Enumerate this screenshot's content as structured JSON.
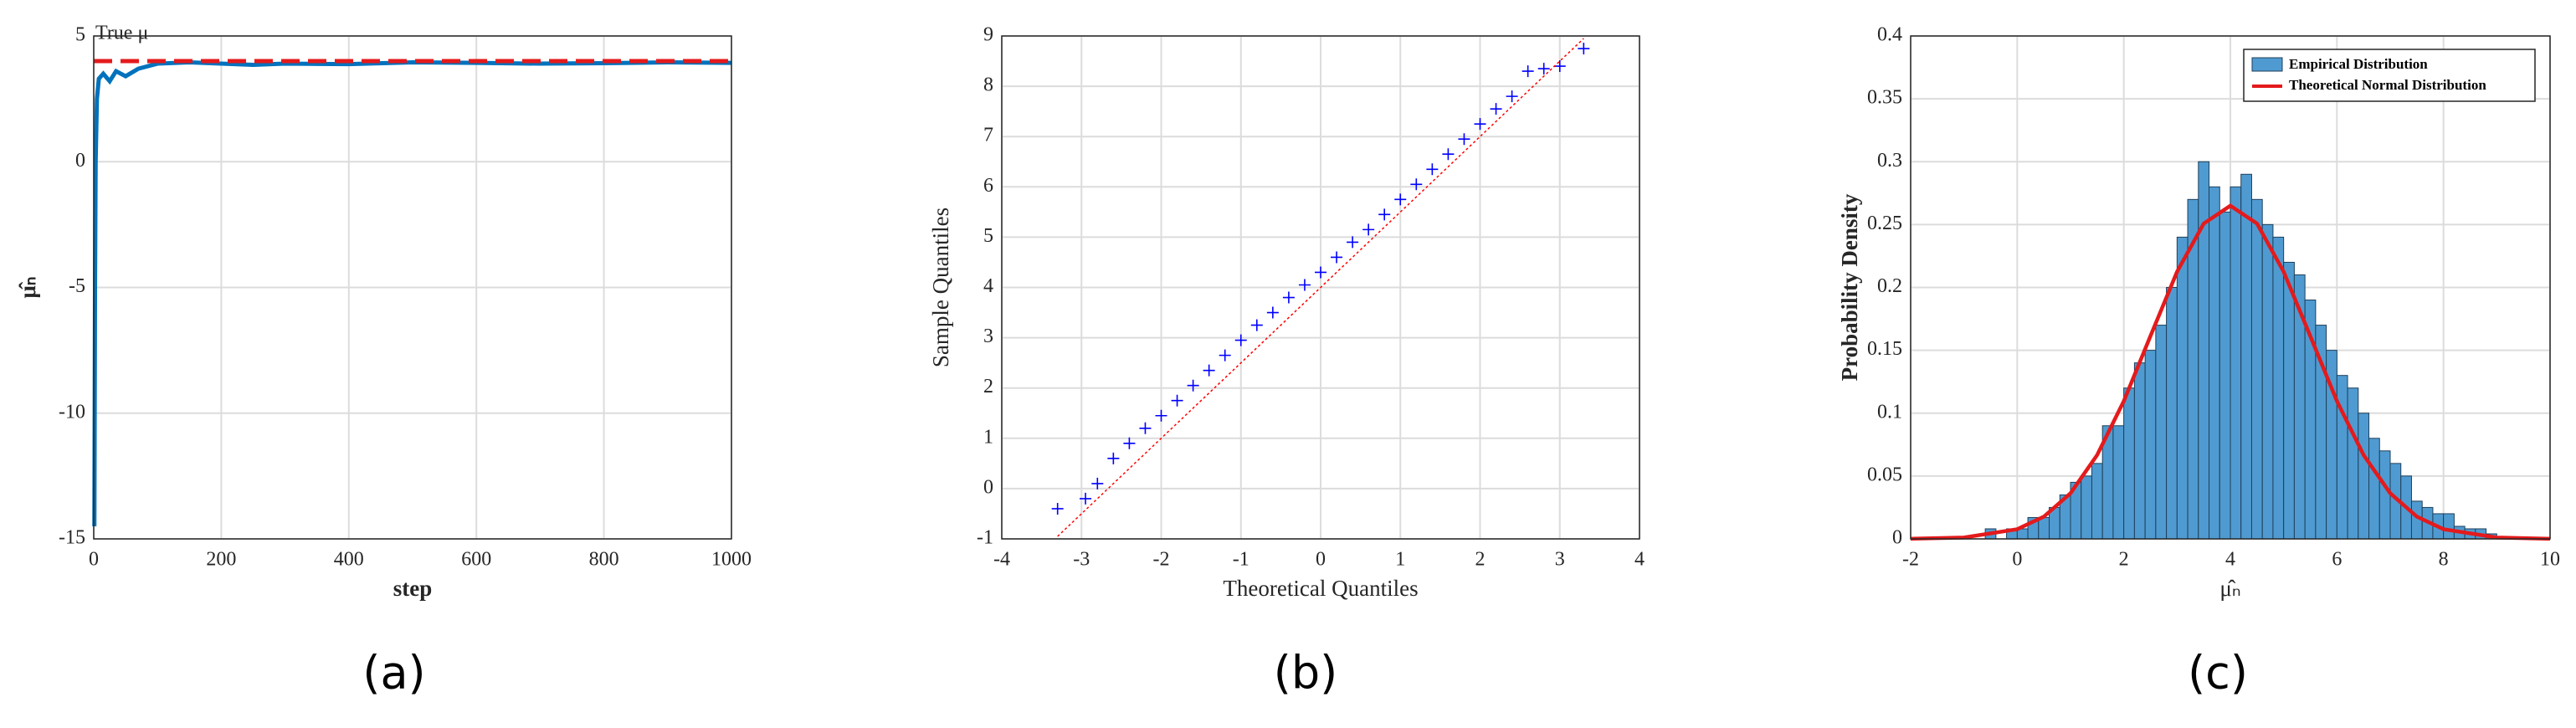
{
  "chart_data": [
    {
      "type": "line",
      "caption": "(a)",
      "xlabel": "step",
      "ylabel": "μ̂ₙ",
      "annotation": "True μ",
      "xlim": [
        0,
        1000
      ],
      "ylim": [
        -15,
        5
      ],
      "xticks": [
        0,
        200,
        400,
        600,
        800,
        1000
      ],
      "yticks": [
        -15,
        -10,
        -5,
        0,
        5
      ],
      "grid": true,
      "series": [
        {
          "color": "#0072bd",
          "dash": false,
          "x": [
            1,
            2,
            3,
            5,
            8,
            15,
            25,
            35,
            50,
            70,
            100,
            150,
            200,
            250,
            300,
            400,
            500,
            600,
            700,
            800,
            900,
            1000
          ],
          "values": [
            -14.5,
            -5,
            0,
            2.5,
            3.3,
            3.5,
            3.2,
            3.6,
            3.4,
            3.7,
            3.9,
            3.95,
            3.9,
            3.85,
            3.9,
            3.88,
            3.95,
            3.93,
            3.9,
            3.92,
            3.95,
            3.93
          ]
        },
        {
          "color": "#e41a1c",
          "dash": true,
          "x": [
            0,
            1000
          ],
          "values": [
            4,
            4
          ]
        }
      ]
    },
    {
      "type": "scatter",
      "caption": "(b)",
      "xlabel": "Theoretical Quantiles",
      "ylabel": "Sample Quantiles",
      "xlim": [
        -4,
        4
      ],
      "ylim": [
        -1,
        9
      ],
      "xticks": [
        -4,
        -3,
        -2,
        -1,
        0,
        1,
        2,
        3,
        4
      ],
      "yticks": [
        -1,
        0,
        1,
        2,
        3,
        4,
        5,
        6,
        7,
        8,
        9
      ],
      "grid": true,
      "series": [
        {
          "mode": "markers",
          "color": "#0000ff",
          "x": [
            -3.3,
            -2.95,
            -2.8,
            -2.6,
            -2.4,
            -2.2,
            -2.0,
            -1.8,
            -1.6,
            -1.4,
            -1.2,
            -1.0,
            -0.8,
            -0.6,
            -0.4,
            -0.2,
            0,
            0.2,
            0.4,
            0.6,
            0.8,
            1.0,
            1.2,
            1.4,
            1.6,
            1.8,
            2.0,
            2.2,
            2.4,
            2.6,
            2.8,
            3.0,
            3.3
          ],
          "values": [
            -0.4,
            -0.2,
            0.1,
            0.6,
            0.9,
            1.2,
            1.45,
            1.75,
            2.05,
            2.35,
            2.65,
            2.95,
            3.25,
            3.5,
            3.8,
            4.05,
            4.3,
            4.6,
            4.9,
            5.15,
            5.45,
            5.75,
            6.05,
            6.35,
            6.65,
            6.95,
            7.25,
            7.55,
            7.8,
            8.3,
            8.35,
            8.4,
            8.75
          ]
        },
        {
          "mode": "line",
          "color": "#ff0000",
          "x": [
            -3.3,
            3.3
          ],
          "values": [
            -0.95,
            8.95
          ]
        }
      ]
    },
    {
      "type": "histogram",
      "caption": "(c)",
      "xlabel": "μ̂ₙ",
      "ylabel": "Probability Density",
      "xlim": [
        -2,
        10
      ],
      "ylim": [
        0,
        0.4
      ],
      "xticks": [
        -2,
        0,
        2,
        4,
        6,
        8,
        10
      ],
      "yticks": [
        0,
        0.05,
        0.1,
        0.15,
        0.2,
        0.25,
        0.3,
        0.35,
        0.4
      ],
      "grid": true,
      "legend": "upper right",
      "name": "Empirical Distribution",
      "color": "#4f9bd1",
      "bins": [
        -0.6,
        -0.4,
        -0.2,
        0,
        0.2,
        0.4,
        0.6,
        0.8,
        1.0,
        1.2,
        1.4,
        1.6,
        1.8,
        2.0,
        2.2,
        2.4,
        2.6,
        2.8,
        3.0,
        3.2,
        3.4,
        3.6,
        3.8,
        4.0,
        4.2,
        4.4,
        4.6,
        4.8,
        5.0,
        5.2,
        5.4,
        5.6,
        5.8,
        6.0,
        6.2,
        6.4,
        6.6,
        6.8,
        7.0,
        7.2,
        7.4,
        7.6,
        7.8,
        8.0,
        8.2,
        8.4,
        8.6,
        8.8,
        9.0
      ],
      "values": [
        0.008,
        0,
        0.008,
        0.008,
        0.017,
        0.017,
        0.025,
        0.035,
        0.045,
        0.05,
        0.06,
        0.09,
        0.09,
        0.12,
        0.14,
        0.15,
        0.17,
        0.2,
        0.24,
        0.27,
        0.3,
        0.28,
        0.26,
        0.28,
        0.29,
        0.27,
        0.25,
        0.24,
        0.22,
        0.21,
        0.19,
        0.17,
        0.15,
        0.13,
        0.12,
        0.1,
        0.08,
        0.07,
        0.06,
        0.05,
        0.03,
        0.025,
        0.02,
        0.02,
        0.01,
        0.008,
        0.008,
        0.004
      ],
      "curve": {
        "name": "Theoretical Normal Distribution",
        "color": "#e41a1c",
        "x": [
          -2,
          -1,
          0,
          0.5,
          1,
          1.5,
          2,
          2.5,
          3,
          3.5,
          4,
          4.5,
          5,
          5.5,
          6,
          6.5,
          7,
          7.5,
          8,
          9,
          10
        ],
        "values": [
          0.0001,
          0.0011,
          0.0077,
          0.0177,
          0.0363,
          0.0667,
          0.1096,
          0.1613,
          0.2125,
          0.2508,
          0.265,
          0.2508,
          0.2125,
          0.1613,
          0.1096,
          0.0667,
          0.0363,
          0.0177,
          0.0077,
          0.0011,
          0.0001
        ]
      }
    }
  ]
}
